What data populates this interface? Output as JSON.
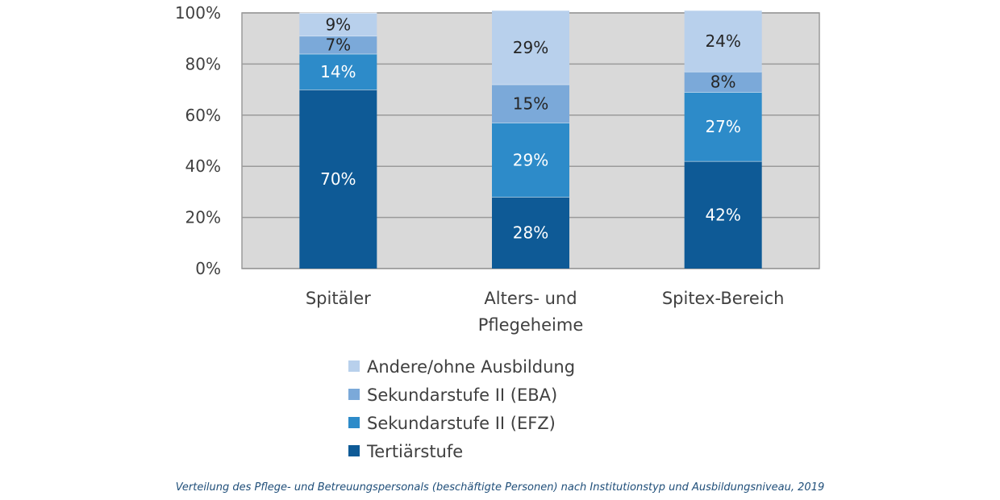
{
  "chart_data": {
    "type": "bar",
    "stacked": true,
    "categories": [
      [
        "Spitäler"
      ],
      [
        "Alters- und",
        "Pflegeheime"
      ],
      [
        "Spitex-Bereich"
      ]
    ],
    "series": [
      {
        "name": "Tertiärstufe",
        "color": "#0e5a96",
        "label_color": "#ffffff",
        "values": [
          70,
          28,
          42
        ]
      },
      {
        "name": "Sekundarstufe II (EFZ)",
        "color": "#2d8bc9",
        "label_color": "#ffffff",
        "values": [
          14,
          29,
          27
        ]
      },
      {
        "name": "Sekundarstufe II (EBA)",
        "color": "#7ba9d9",
        "label_color": "#262626",
        "values": [
          7,
          15,
          8
        ]
      },
      {
        "name": "Andere/ohne Ausbildung",
        "color": "#b8d0ec",
        "label_color": "#262626",
        "values": [
          9,
          29,
          24
        ]
      }
    ],
    "ylim": [
      0,
      100
    ],
    "yticks": [
      "0%",
      "20%",
      "40%",
      "60%",
      "80%",
      "100%"
    ],
    "legend_order": [
      "Andere/ohne Ausbildung",
      "Sekundarstufe II (EBA)",
      "Sekundarstufe II (EFZ)",
      "Tertiärstufe"
    ],
    "legend_position": "bottom",
    "grid": true,
    "plot_background": "#d9d9d9"
  },
  "caption": "Verteilung des Pflege- und Betreuungspersonals (beschäftigte Personen) nach Institutionstyp und Ausbildungsniveau, 2019"
}
